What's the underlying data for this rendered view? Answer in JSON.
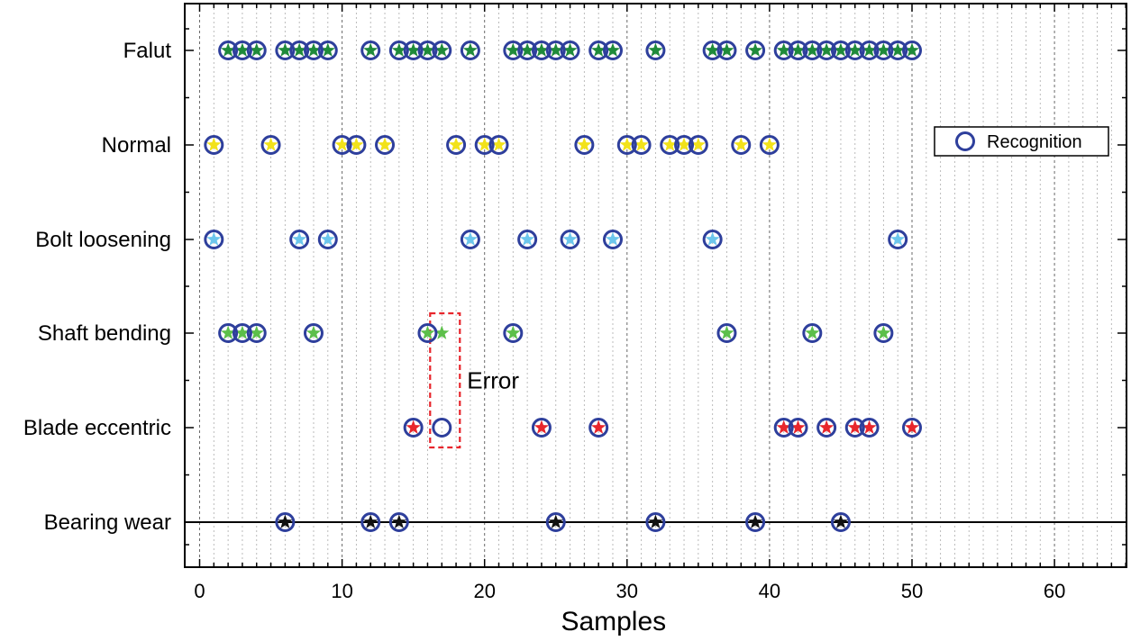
{
  "chart_data": {
    "type": "scatter",
    "title": "",
    "xlabel": "Samples",
    "ylabel": "",
    "xlim": [
      -1,
      65
    ],
    "xticks": [
      0,
      10,
      20,
      30,
      40,
      50,
      60
    ],
    "categories": [
      "Falut",
      "Normal",
      "Bolt loosening",
      "Shaft bending",
      "Blade eccentric",
      "Bearing wear"
    ],
    "series": [
      {
        "name": "Falut",
        "star_color": "#1f8a3a",
        "x": [
          2,
          3,
          4,
          6,
          7,
          8,
          9,
          12,
          14,
          15,
          16,
          17,
          19,
          22,
          23,
          24,
          25,
          26,
          28,
          29,
          32,
          36,
          37,
          39,
          41,
          42,
          43,
          44,
          45,
          46,
          47,
          48,
          49,
          50
        ]
      },
      {
        "name": "Normal",
        "star_color": "#f2e21a",
        "x": [
          1,
          5,
          10,
          11,
          13,
          18,
          20,
          21,
          27,
          30,
          31,
          33,
          34,
          35,
          38,
          40
        ]
      },
      {
        "name": "Bolt loosening",
        "star_color": "#6cc6ec",
        "x": [
          1,
          7,
          9,
          19,
          23,
          26,
          29,
          36,
          49
        ]
      },
      {
        "name": "Shaft bending",
        "star_color": "#5cbf4a",
        "x": [
          2,
          3,
          4,
          8,
          16,
          17,
          22,
          37,
          43,
          48
        ]
      },
      {
        "name": "Blade eccentric",
        "star_color": "#e8262c",
        "x": [
          15,
          24,
          28,
          41,
          42,
          44,
          46,
          47,
          50
        ]
      },
      {
        "name": "Bearing wear",
        "star_color": "#111111",
        "x": [
          6,
          12,
          14,
          25,
          32,
          39,
          45
        ]
      }
    ],
    "recognition": {
      "Falut": [
        2,
        3,
        4,
        6,
        7,
        8,
        9,
        12,
        14,
        15,
        16,
        17,
        19,
        22,
        23,
        24,
        25,
        26,
        28,
        29,
        32,
        36,
        37,
        39,
        41,
        42,
        43,
        44,
        45,
        46,
        47,
        48,
        49,
        50
      ],
      "Normal": [
        1,
        5,
        10,
        11,
        13,
        18,
        20,
        21,
        27,
        30,
        31,
        33,
        34,
        35,
        38,
        40
      ],
      "Bolt loosening": [
        1,
        7,
        9,
        19,
        23,
        26,
        29,
        36,
        49
      ],
      "Shaft bending": [
        2,
        3,
        4,
        8,
        16,
        22,
        37,
        43,
        48
      ],
      "Blade eccentric": [
        15,
        17,
        24,
        28,
        41,
        42,
        44,
        46,
        47,
        50
      ],
      "Bearing wear": [
        6,
        12,
        14,
        25,
        32,
        39,
        45
      ]
    },
    "recognition_color": "#2e3f9c",
    "legend": {
      "label": "Recognition",
      "position": "right"
    },
    "annotations": [
      {
        "text": "Error",
        "at_sample": 17,
        "between": [
          "Shaft bending",
          "Blade eccentric"
        ]
      }
    ],
    "grid": {
      "major_x": true,
      "minor_x": true
    }
  }
}
